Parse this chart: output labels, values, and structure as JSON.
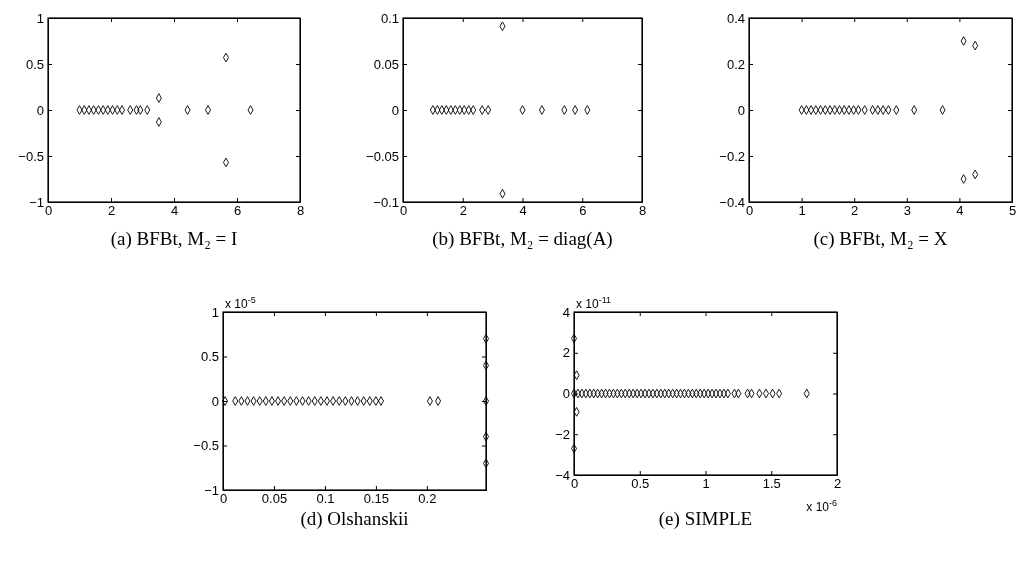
{
  "chart_data": [
    {
      "type": "scatter",
      "title": "(a) BFBt, M₂ = I",
      "marker": "diamond",
      "color": "#000000",
      "grid": false,
      "xlim": [
        0,
        8
      ],
      "ylim": [
        -1,
        1
      ],
      "xticks": [
        0,
        2,
        4,
        6,
        8
      ],
      "yticks": [
        -1,
        -0.5,
        0,
        0.5,
        1
      ],
      "x": [
        1.0,
        1.15,
        1.3,
        1.45,
        1.6,
        1.75,
        1.9,
        2.05,
        2.2,
        2.35,
        2.61,
        2.81,
        2.93,
        3.15,
        3.52,
        3.52,
        4.43,
        5.08,
        5.65,
        5.65,
        6.43
      ],
      "values": [
        0,
        0,
        0,
        0,
        0,
        0,
        0,
        0,
        0,
        0,
        0,
        0,
        0,
        0,
        0.13,
        -0.13,
        0,
        0,
        0.57,
        -0.57,
        0
      ]
    },
    {
      "type": "scatter",
      "title": "(b) BFBt, M₂ = diag(A)",
      "marker": "diamond",
      "color": "#000000",
      "grid": false,
      "xlim": [
        0,
        8
      ],
      "ylim": [
        -0.1,
        0.1
      ],
      "xticks": [
        0,
        2,
        4,
        6,
        8
      ],
      "yticks": [
        -0.1,
        -0.05,
        0,
        0.05,
        0.1
      ],
      "x": [
        1.0,
        1.15,
        1.3,
        1.45,
        1.6,
        1.75,
        1.9,
        2.05,
        2.2,
        2.35,
        2.65,
        2.85,
        3.33,
        3.33,
        4.0,
        4.65,
        5.4,
        5.76,
        6.17
      ],
      "values": [
        0,
        0,
        0,
        0,
        0,
        0,
        0,
        0,
        0,
        0,
        0,
        0,
        0.091,
        -0.091,
        0,
        0,
        0,
        0,
        0
      ]
    },
    {
      "type": "scatter",
      "title": "(c) BFBt, M₂ = X",
      "marker": "diamond",
      "color": "#000000",
      "grid": false,
      "xlim": [
        0,
        5
      ],
      "ylim": [
        -0.4,
        0.4
      ],
      "xticks": [
        0,
        1,
        2,
        3,
        4,
        5
      ],
      "yticks": [
        -0.4,
        -0.2,
        0,
        0.2,
        0.4
      ],
      "x": [
        1.0,
        1.09,
        1.18,
        1.27,
        1.36,
        1.45,
        1.54,
        1.63,
        1.72,
        1.81,
        1.9,
        1.99,
        2.08,
        2.2,
        2.35,
        2.45,
        2.55,
        2.65,
        2.8,
        3.14,
        3.68,
        4.08,
        4.08,
        4.3,
        4.3
      ],
      "values": [
        0,
        0,
        0,
        0,
        0,
        0,
        0,
        0,
        0,
        0,
        0,
        0,
        0,
        0,
        0,
        0,
        0,
        0,
        0,
        0,
        0,
        0.3,
        -0.3,
        0.28,
        -0.28
      ]
    },
    {
      "type": "scatter",
      "title": "(d) Olshanskii",
      "marker": "diamond",
      "color": "#000000",
      "grid": false,
      "xlim": [
        0,
        0.258
      ],
      "ylim": [
        -1,
        1
      ],
      "xticks": [
        0,
        0.05,
        0.1,
        0.15,
        0.2
      ],
      "yticks": [
        -1,
        -0.5,
        0,
        0.5,
        1
      ],
      "annotations": [
        "x 10$^{-5}$"
      ],
      "x": [
        0.002,
        0.012,
        0.018,
        0.024,
        0.03,
        0.036,
        0.042,
        0.048,
        0.054,
        0.06,
        0.066,
        0.072,
        0.078,
        0.084,
        0.09,
        0.096,
        0.102,
        0.108,
        0.114,
        0.12,
        0.126,
        0.132,
        0.138,
        0.144,
        0.15,
        0.155,
        0.203,
        0.211,
        0.258,
        0.258,
        0.258,
        0.258,
        0.258
      ],
      "values": [
        0,
        0,
        0,
        0,
        0,
        0,
        0,
        0,
        0,
        0,
        0,
        0,
        0,
        0,
        0,
        0,
        0,
        0,
        0,
        0,
        0,
        0,
        0,
        0,
        0,
        0,
        0,
        0,
        0.7,
        0.4,
        0,
        -0.4,
        -0.7
      ]
    },
    {
      "type": "scatter",
      "title": "(e) SIMPLE",
      "marker": "diamond",
      "color": "#000000",
      "grid": false,
      "xlim": [
        0,
        2
      ],
      "ylim": [
        -4,
        4
      ],
      "xticks": [
        0,
        0.5,
        1,
        1.5,
        2
      ],
      "yticks": [
        -4,
        -2,
        0,
        2,
        4
      ],
      "annotations": [
        "x 10$^{-11}$",
        "x 10$^{-6}$"
      ],
      "x": [
        0,
        0.02,
        0.02,
        0,
        0,
        0.03,
        0.06,
        0.09,
        0.12,
        0.15,
        0.18,
        0.21,
        0.24,
        0.27,
        0.3,
        0.33,
        0.36,
        0.39,
        0.42,
        0.45,
        0.48,
        0.51,
        0.54,
        0.57,
        0.6,
        0.63,
        0.66,
        0.69,
        0.72,
        0.75,
        0.78,
        0.81,
        0.84,
        0.87,
        0.9,
        0.93,
        0.96,
        0.99,
        1.02,
        1.05,
        1.08,
        1.11,
        1.14,
        1.17,
        1.22,
        1.25,
        1.32,
        1.35,
        1.41,
        1.46,
        1.51,
        1.56,
        1.77
      ],
      "values": [
        2.7,
        0.9,
        -0.9,
        -2.7,
        0,
        0,
        0,
        0,
        0,
        0,
        0,
        0,
        0,
        0,
        0,
        0,
        0,
        0,
        0,
        0,
        0,
        0,
        0,
        0,
        0,
        0,
        0,
        0,
        0,
        0,
        0,
        0,
        0,
        0,
        0,
        0,
        0,
        0,
        0,
        0,
        0,
        0,
        0,
        0,
        0,
        0,
        0,
        0,
        0,
        0,
        0,
        0,
        0
      ]
    }
  ]
}
